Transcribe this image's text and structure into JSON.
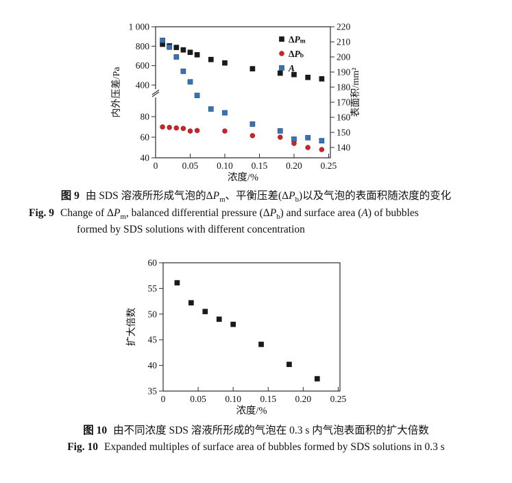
{
  "colors": {
    "axis": "#2b2b2b",
    "text": "#111111",
    "black_marker": "#1a1a1a",
    "red_marker": "#c9262b",
    "red_marker_edge": "#a01d22",
    "blue_marker": "#3a72b2",
    "blue_marker_edge": "#1c4f85"
  },
  "chart_data": [
    {
      "id": "fig9",
      "type": "scatter",
      "xlabel": "浓度/%",
      "x_range": [
        0,
        0.25
      ],
      "x_tick_values": [
        0,
        0.05,
        0.1,
        0.15,
        0.2,
        0.25
      ],
      "x_tick_labels": [
        "0",
        "0.05",
        "0.10",
        "0.15",
        "0.20",
        "0.25"
      ],
      "left_axis": {
        "label": "内外压差/Pa",
        "broken": true,
        "lower_range": [
          40,
          80
        ],
        "lower_ticks": [
          40,
          60,
          80
        ],
        "lower_tick_labels": [
          "40",
          "60",
          "80"
        ],
        "upper_range": [
          400,
          1000
        ],
        "upper_ticks": [
          400,
          600,
          800,
          1000
        ],
        "upper_tick_labels": [
          "400",
          "600",
          "800",
          "1 000"
        ]
      },
      "right_axis": {
        "label": "表面积/mm²",
        "range": [
          140,
          220
        ],
        "ticks": [
          140,
          150,
          160,
          170,
          180,
          190,
          200,
          210,
          220
        ],
        "tick_labels": [
          "140",
          "150",
          "160",
          "170",
          "180",
          "190",
          "200",
          "210",
          "220"
        ]
      },
      "series": [
        {
          "label": [
            {
              "t": "Δ"
            },
            {
              "i": "P"
            },
            {
              "sub": "m"
            }
          ],
          "marker": "square",
          "color": "#1a1a1a",
          "edge": "#1a1a1a",
          "axis": "left",
          "x": [
            0.01,
            0.02,
            0.03,
            0.04,
            0.05,
            0.06,
            0.08,
            0.1,
            0.14,
            0.18,
            0.2,
            0.22,
            0.24
          ],
          "y": [
            820,
            803,
            787,
            762,
            737,
            712,
            663,
            628,
            568,
            523,
            508,
            479,
            464
          ]
        },
        {
          "label": [
            {
              "t": "Δ"
            },
            {
              "i": "P"
            },
            {
              "sub": "b"
            }
          ],
          "marker": "circle",
          "color": "#c9262b",
          "edge": "#a01d22",
          "axis": "left",
          "x": [
            0.01,
            0.02,
            0.03,
            0.04,
            0.05,
            0.06,
            0.1,
            0.14,
            0.18,
            0.2,
            0.22,
            0.24
          ],
          "y": [
            70,
            69.5,
            69,
            68.5,
            66,
            66.5,
            66,
            61.5,
            60,
            54,
            50,
            48
          ]
        },
        {
          "label": [
            {
              "i": "A"
            }
          ],
          "marker": "square",
          "color": "#3a72b2",
          "edge": "#1c4f85",
          "axis": "right",
          "x": [
            0.01,
            0.02,
            0.03,
            0.04,
            0.05,
            0.06,
            0.08,
            0.1,
            0.14,
            0.18,
            0.2,
            0.22,
            0.24
          ],
          "y": [
            211,
            206.5,
            200,
            190.5,
            183.5,
            174.5,
            165.5,
            163,
            155.5,
            151,
            145.5,
            146.5,
            144.5
          ]
        }
      ]
    },
    {
      "id": "fig10",
      "type": "scatter",
      "xlabel": "浓度/%",
      "ylabel": "扩大倍数",
      "x_range": [
        0,
        0.25
      ],
      "x_tick_values": [
        0,
        0.05,
        0.1,
        0.15,
        0.2,
        0.25
      ],
      "x_tick_labels": [
        "0",
        "0.05",
        "0.10",
        "0.15",
        "0.20",
        "0.25"
      ],
      "y_range": [
        35,
        60
      ],
      "y_ticks": [
        35,
        40,
        45,
        50,
        55,
        60
      ],
      "y_tick_labels": [
        "35",
        "40",
        "45",
        "50",
        "55",
        "60"
      ],
      "series": [
        {
          "label": [],
          "marker": "square",
          "color": "#1a1a1a",
          "edge": "#1a1a1a",
          "axis": "left",
          "x": [
            0.02,
            0.04,
            0.06,
            0.08,
            0.1,
            0.14,
            0.18,
            0.22
          ],
          "y": [
            56.1,
            52.2,
            50.5,
            49.0,
            48.0,
            44.1,
            40.2,
            37.4
          ]
        }
      ]
    }
  ],
  "captions": {
    "fig9_cn_label": "图 9",
    "fig9_cn_segments": [
      {
        "t": "由 SDS 溶液所形成气泡的Δ"
      },
      {
        "i": "P"
      },
      {
        "sub": "m"
      },
      {
        "t": "、平衡压差(Δ"
      },
      {
        "i": "P"
      },
      {
        "sub": "b"
      },
      {
        "t": ")以及气泡的表面积随浓度的变化"
      }
    ],
    "fig9_en_label": "Fig. 9",
    "fig9_en_line1_segments": [
      {
        "t": "Change of Δ"
      },
      {
        "i": "P"
      },
      {
        "sub": "m"
      },
      {
        "t": ", balanced differential pressure (Δ"
      },
      {
        "i": "P"
      },
      {
        "sub": "b"
      },
      {
        "t": ") and surface area ("
      },
      {
        "i": "A"
      },
      {
        "t": ") of bubbles"
      }
    ],
    "fig9_en_line2": "formed by SDS solutions with different concentration",
    "fig10_cn_label": "图 10",
    "fig10_cn_text": "由不同浓度 SDS 溶液所形成的气泡在 0.3 s 内气泡表面积的扩大倍数",
    "fig10_en_label": "Fig. 10",
    "fig10_en_text": "Expanded multiples of surface area of bubbles formed by SDS solutions in 0.3 s"
  }
}
